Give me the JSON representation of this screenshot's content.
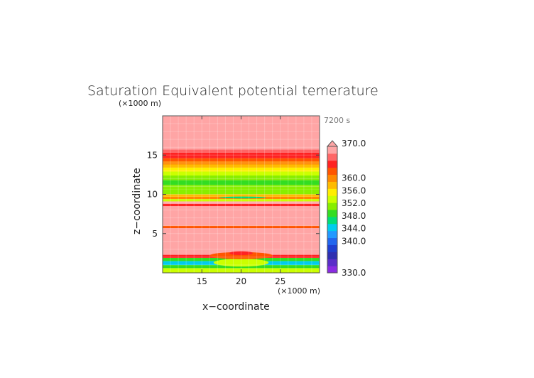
{
  "chart_data": {
    "type": "heatmap",
    "title": "Saturation Equivalent potential temerature",
    "xlabel": "x−coordinate",
    "ylabel": "z−coordinate",
    "x_unit": "(×1000 m)",
    "y_unit": "(×1000 m)",
    "time_label": "7200 s",
    "xlim": [
      10,
      30
    ],
    "ylim": [
      0,
      20
    ],
    "x_ticks": [
      "15",
      "20",
      "25"
    ],
    "y_ticks": [
      "5",
      "10",
      "15"
    ],
    "colorbar": {
      "min": 330.0,
      "max": 370.0,
      "labels": [
        "370.0",
        "360.0",
        "356.0",
        "352.0",
        "348.0",
        "344.0",
        "340.0",
        "330.0"
      ],
      "colors": [
        "#8a2be2",
        "#5a2ec8",
        "#2f2fb0",
        "#1f3fd0",
        "#2266ee",
        "#2299ff",
        "#00ccee",
        "#00dd77",
        "#33dd22",
        "#88ee00",
        "#ccff00",
        "#ffee00",
        "#ffbb00",
        "#ff8800",
        "#ff5500",
        "#ff2222",
        "#ff6666",
        "#ffa5a5"
      ]
    },
    "bands": [
      {
        "z0": 0.0,
        "z1": 0.6,
        "value": 353
      },
      {
        "z0": 0.6,
        "z1": 1.0,
        "value": 349
      },
      {
        "z0": 1.0,
        "z1": 1.5,
        "value": 345
      },
      {
        "z0": 1.5,
        "z1": 1.9,
        "value": 349
      },
      {
        "z0": 1.9,
        "z1": 2.3,
        "value": 365
      },
      {
        "z0": 2.3,
        "z1": 5.7,
        "value": 369
      },
      {
        "z0": 5.7,
        "z1": 6.0,
        "value": 362
      },
      {
        "z0": 6.0,
        "z1": 8.5,
        "value": 369
      },
      {
        "z0": 8.5,
        "z1": 8.8,
        "value": 365
      },
      {
        "z0": 8.8,
        "z1": 9.1,
        "value": 369
      },
      {
        "z0": 9.1,
        "z1": 9.4,
        "value": 354
      },
      {
        "z0": 9.4,
        "z1": 9.7,
        "value": 360
      },
      {
        "z0": 9.7,
        "z1": 10.0,
        "value": 357
      },
      {
        "z0": 10.0,
        "z1": 10.6,
        "value": 352
      },
      {
        "z0": 10.6,
        "z1": 11.2,
        "value": 350
      },
      {
        "z0": 11.2,
        "z1": 11.8,
        "value": 349
      },
      {
        "z0": 11.8,
        "z1": 12.4,
        "value": 351
      },
      {
        "z0": 12.4,
        "z1": 12.9,
        "value": 353
      },
      {
        "z0": 12.9,
        "z1": 13.4,
        "value": 355
      },
      {
        "z0": 13.4,
        "z1": 13.8,
        "value": 357
      },
      {
        "z0": 13.8,
        "z1": 14.2,
        "value": 359
      },
      {
        "z0": 14.2,
        "z1": 14.6,
        "value": 362
      },
      {
        "z0": 14.6,
        "z1": 15.3,
        "value": 364
      },
      {
        "z0": 15.3,
        "z1": 15.7,
        "value": 366
      },
      {
        "z0": 15.7,
        "z1": 20.0,
        "value": 369
      }
    ],
    "features": [
      {
        "shape": "ellipse",
        "x": 20.0,
        "z": 1.3,
        "rx": 3.5,
        "rz": 0.5,
        "value": 353
      },
      {
        "shape": "ellipse",
        "x": 20.0,
        "z": 2.2,
        "rx": 4.0,
        "rz": 0.45,
        "value": 362
      },
      {
        "shape": "ellipse",
        "x": 20.0,
        "z": 2.5,
        "rx": 1.5,
        "rz": 0.25,
        "value": 365
      },
      {
        "shape": "ellipse",
        "x": 20.2,
        "z": 9.6,
        "rx": 3.0,
        "rz": 0.12,
        "value": 346
      }
    ]
  }
}
